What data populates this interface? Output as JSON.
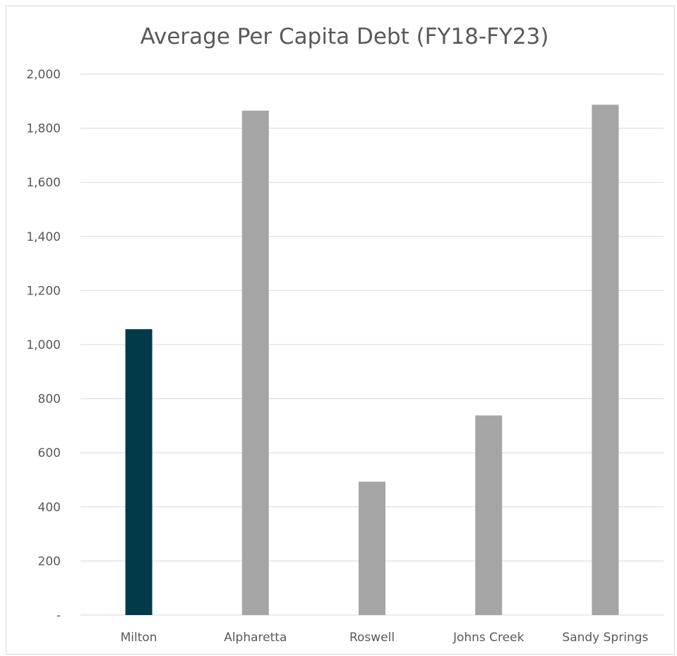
{
  "chart_data": {
    "type": "bar",
    "title": "Average Per Capita Debt (FY18-FY23)",
    "xlabel": "",
    "ylabel": "",
    "categories": [
      "Milton",
      "Alpharetta",
      "Roswell",
      "Johns Creek",
      "Sandy Springs"
    ],
    "values": [
      1057,
      1865,
      493,
      738,
      1887
    ],
    "colors": [
      "#023a4a",
      "#a5a5a5",
      "#a5a5a5",
      "#a5a5a5",
      "#a5a5a5"
    ],
    "ylim": [
      0,
      2000
    ],
    "yticks": [
      0,
      200,
      400,
      600,
      800,
      1000,
      1200,
      1400,
      1600,
      1800,
      2000
    ],
    "ytick_labels": [
      "-",
      "200",
      "400",
      "600",
      "800",
      "1,000",
      "1,200",
      "1,400",
      "1,600",
      "1,800",
      "2,000"
    ],
    "grid": true,
    "legend": false
  }
}
